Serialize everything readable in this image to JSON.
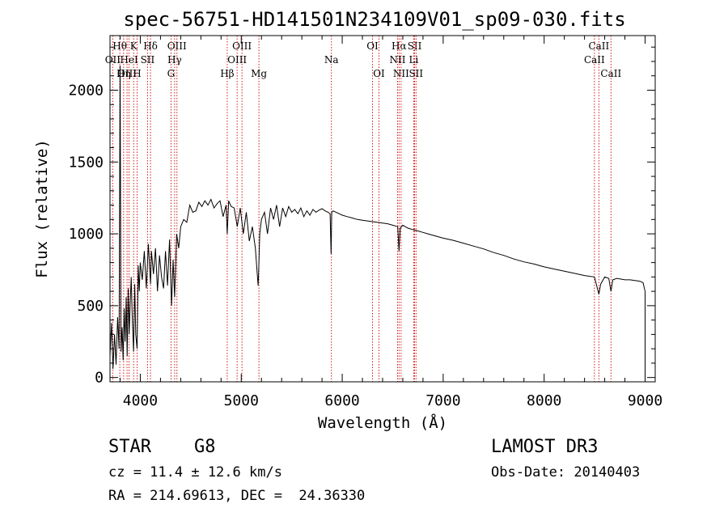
{
  "chart_data": {
    "type": "line",
    "title": "spec-56751-HD141501N234109V01_sp09-030.fits",
    "xlabel": "Wavelength (Å)",
    "ylabel": "Flux (relative)",
    "xlim": [
      3700,
      9100
    ],
    "ylim": [
      -30,
      2380
    ],
    "xticks": [
      4000,
      5000,
      6000,
      7000,
      8000,
      9000
    ],
    "yticks": [
      0,
      500,
      1000,
      1500,
      2000
    ],
    "series": [
      {
        "name": "flux",
        "x": [
          3700,
          3715,
          3730,
          3745,
          3760,
          3775,
          3790,
          3800,
          3810,
          3820,
          3830,
          3840,
          3850,
          3860,
          3870,
          3880,
          3890,
          3900,
          3910,
          3920,
          3933,
          3945,
          3955,
          3968,
          3980,
          3990,
          4000,
          4020,
          4040,
          4060,
          4080,
          4101,
          4110,
          4130,
          4150,
          4170,
          4190,
          4210,
          4230,
          4250,
          4270,
          4290,
          4310,
          4325,
          4340,
          4360,
          4380,
          4400,
          4430,
          4460,
          4490,
          4520,
          4550,
          4580,
          4610,
          4640,
          4670,
          4700,
          4730,
          4760,
          4790,
          4820,
          4850,
          4861,
          4875,
          4900,
          4930,
          4960,
          4990,
          5020,
          5050,
          5080,
          5110,
          5140,
          5167,
          5172,
          5183,
          5200,
          5230,
          5260,
          5290,
          5320,
          5350,
          5380,
          5410,
          5440,
          5470,
          5500,
          5530,
          5560,
          5590,
          5620,
          5650,
          5680,
          5710,
          5740,
          5770,
          5800,
          5830,
          5860,
          5880,
          5890,
          5896,
          5910,
          5940,
          5970,
          6000,
          6050,
          6100,
          6150,
          6200,
          6250,
          6300,
          6350,
          6400,
          6450,
          6500,
          6550,
          6563,
          6575,
          6600,
          6650,
          6700,
          6750,
          6800,
          6850,
          6900,
          6950,
          7000,
          7100,
          7200,
          7300,
          7400,
          7500,
          7600,
          7700,
          7800,
          7900,
          8000,
          8100,
          8200,
          8300,
          8400,
          8498,
          8520,
          8542,
          8560,
          8600,
          8640,
          8662,
          8680,
          8720,
          8760,
          8800,
          8850,
          8900,
          8950,
          8980,
          9000
        ],
        "values": [
          150,
          380,
          60,
          300,
          90,
          420,
          200,
          2170,
          180,
          350,
          120,
          480,
          250,
          560,
          150,
          620,
          300,
          520,
          700,
          420,
          180,
          650,
          300,
          200,
          780,
          600,
          800,
          680,
          880,
          620,
          930,
          650,
          880,
          720,
          900,
          600,
          850,
          700,
          620,
          880,
          640,
          960,
          500,
          820,
          560,
          1000,
          900,
          1050,
          1100,
          1080,
          1200,
          1150,
          1160,
          1220,
          1190,
          1230,
          1200,
          1240,
          1180,
          1210,
          1230,
          1120,
          1200,
          1000,
          1230,
          1190,
          1180,
          1050,
          1180,
          1000,
          1150,
          950,
          1050,
          900,
          640,
          720,
          1000,
          1100,
          1150,
          1000,
          1180,
          1100,
          1200,
          1050,
          1180,
          1120,
          1190,
          1150,
          1170,
          1140,
          1180,
          1120,
          1160,
          1130,
          1170,
          1150,
          1165,
          1175,
          1160,
          1150,
          1140,
          860,
          1150,
          1160,
          1150,
          1140,
          1130,
          1120,
          1110,
          1100,
          1095,
          1090,
          1085,
          1080,
          1075,
          1070,
          1060,
          1050,
          880,
          1040,
          1060,
          1040,
          1030,
          1020,
          1010,
          1000,
          990,
          980,
          970,
          955,
          935,
          915,
          895,
          870,
          850,
          825,
          805,
          790,
          770,
          755,
          740,
          725,
          710,
          700,
          640,
          580,
          650,
          700,
          690,
          600,
          680,
          690,
          685,
          680,
          680,
          675,
          670,
          660,
          600
        ]
      }
    ],
    "lines": [
      {
        "label": "Hθ",
        "x": 3797,
        "row": 0
      },
      {
        "label": "OII",
        "x": 3727,
        "row": 1
      },
      {
        "label": "OIII",
        "x": 3869,
        "row": 2
      },
      {
        "label": "K",
        "x": 3934,
        "row": 0
      },
      {
        "label": "HeI",
        "x": 3889,
        "row": 1
      },
      {
        "label": "Hη",
        "x": 3835,
        "row": 2
      },
      {
        "label": "SII",
        "x": 4072,
        "row": 1
      },
      {
        "label": "H",
        "x": 3968,
        "row": 2
      },
      {
        "label": "Hδ",
        "x": 4101,
        "row": 0
      },
      {
        "label": "OIII",
        "x": 4363,
        "row": 0
      },
      {
        "label": "Hγ",
        "x": 4340,
        "row": 1
      },
      {
        "label": "G",
        "x": 4304,
        "row": 2
      },
      {
        "label": "OIII",
        "x": 5007,
        "row": 0
      },
      {
        "label": "OIII",
        "x": 4959,
        "row": 1
      },
      {
        "label": "Hβ",
        "x": 4861,
        "row": 2
      },
      {
        "label": "Mg",
        "x": 5175,
        "row": 2
      },
      {
        "label": "Na",
        "x": 5893,
        "row": 1
      },
      {
        "label": "OI",
        "x": 6300,
        "row": 0
      },
      {
        "label": "OI",
        "x": 6364,
        "row": 2
      },
      {
        "label": "Hα",
        "x": 6563,
        "row": 0
      },
      {
        "label": "SII",
        "x": 6717,
        "row": 0
      },
      {
        "label": "NII",
        "x": 6548,
        "row": 1
      },
      {
        "label": "Li",
        "x": 6708,
        "row": 1
      },
      {
        "label": "NII",
        "x": 6583,
        "row": 2
      },
      {
        "label": "SII",
        "x": 6731,
        "row": 2
      },
      {
        "label": "CaII",
        "x": 8542,
        "row": 0
      },
      {
        "label": "CaII",
        "x": 8498,
        "row": 1
      },
      {
        "label": "CaII",
        "x": 8662,
        "row": 2
      }
    ],
    "line_color": "#cc0000"
  },
  "info": {
    "object_class": "STAR",
    "subclass": "G8",
    "survey": "LAMOST DR3",
    "cz": "cz = 11.4 ± 12.6 km/s",
    "obs_date": "Obs-Date: 20140403",
    "coords": "RA = 214.69613, DEC =  24.36330"
  }
}
